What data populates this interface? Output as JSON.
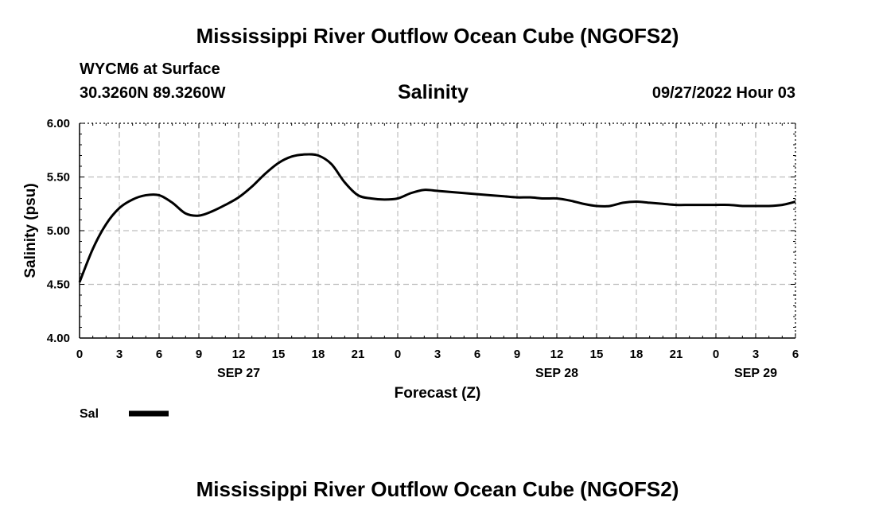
{
  "header": {
    "title": "Mississippi River Outflow Ocean Cube (NGOFS2)",
    "station": "WYCM6 at Surface",
    "coords": "30.3260N  89.3260W",
    "variable": "Salinity",
    "timestamp": "09/27/2022 Hour 03"
  },
  "footer": {
    "title": "Mississippi River Outflow Ocean Cube (NGOFS2)"
  },
  "chart_data": {
    "type": "line",
    "title": "Salinity",
    "xlabel": "Forecast (Z)",
    "ylabel": "Salinity (psu)",
    "xlim": [
      0,
      54
    ],
    "ylim": [
      4.0,
      6.0
    ],
    "grid": true,
    "x_ticks": [
      0,
      3,
      6,
      9,
      12,
      15,
      18,
      21,
      24,
      27,
      30,
      33,
      36,
      39,
      42,
      45,
      48,
      51,
      54
    ],
    "x_tick_labels": [
      "0",
      "3",
      "6",
      "9",
      "12",
      "15",
      "18",
      "21",
      "0",
      "3",
      "6",
      "9",
      "12",
      "15",
      "18",
      "21",
      "0",
      "3",
      "6"
    ],
    "y_ticks": [
      4.0,
      4.5,
      5.0,
      5.5,
      6.0
    ],
    "y_tick_labels": [
      "4.00",
      "4.50",
      "5.00",
      "5.50",
      "6.00"
    ],
    "date_labels": [
      {
        "x": 12,
        "label": "SEP 27"
      },
      {
        "x": 36,
        "label": "SEP 28"
      },
      {
        "x": 51,
        "label": "SEP 29"
      }
    ],
    "legend": [
      {
        "name": "Sal",
        "color": "#000000"
      }
    ],
    "series": [
      {
        "name": "Sal",
        "x": [
          0,
          1,
          2,
          3,
          4,
          5,
          6,
          7,
          8,
          9,
          10,
          11,
          12,
          13,
          14,
          15,
          16,
          17,
          18,
          19,
          20,
          21,
          22,
          23,
          24,
          25,
          26,
          27,
          28,
          29,
          30,
          31,
          32,
          33,
          34,
          35,
          36,
          37,
          38,
          39,
          40,
          41,
          42,
          43,
          44,
          45,
          46,
          47,
          48,
          49,
          50,
          51,
          52,
          53,
          54
        ],
        "values": [
          4.52,
          4.83,
          5.06,
          5.21,
          5.29,
          5.33,
          5.33,
          5.26,
          5.16,
          5.14,
          5.18,
          5.24,
          5.31,
          5.41,
          5.53,
          5.63,
          5.69,
          5.71,
          5.7,
          5.62,
          5.45,
          5.33,
          5.3,
          5.29,
          5.3,
          5.35,
          5.38,
          5.37,
          5.36,
          5.35,
          5.34,
          5.33,
          5.32,
          5.31,
          5.31,
          5.3,
          5.3,
          5.28,
          5.25,
          5.23,
          5.23,
          5.26,
          5.27,
          5.26,
          5.25,
          5.24,
          5.24,
          5.24,
          5.24,
          5.24,
          5.23,
          5.23,
          5.23,
          5.24,
          5.27
        ]
      }
    ]
  }
}
